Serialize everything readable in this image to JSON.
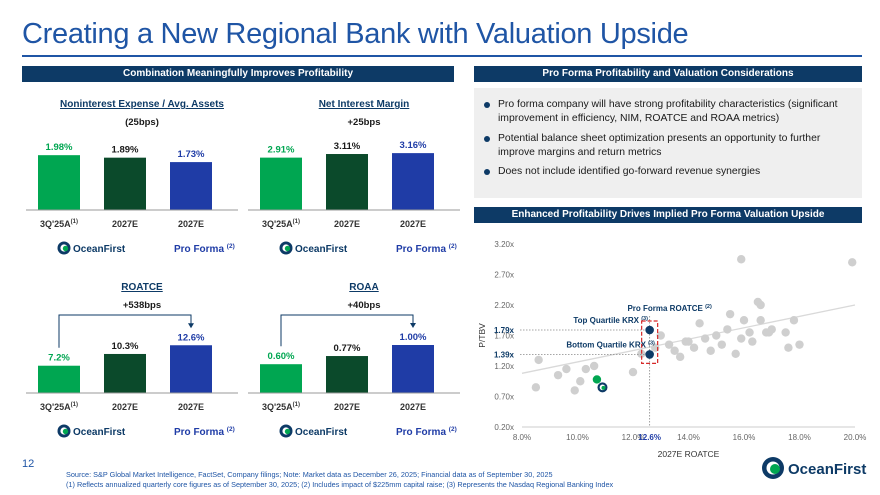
{
  "title": "Creating a New Regional Bank with Valuation Upside",
  "left_band": "Combination Meaningfully Improves Profitability",
  "right_band": "Pro Forma Profitability and Valuation Considerations",
  "scatter_band": "Enhanced Profitability Drives Implied Pro Forma Valuation Upside",
  "bullets": [
    "Pro forma company will have strong profitability characteristics (significant improvement in efficiency, NIM, ROATCE and ROAA metrics)",
    "Potential balance sheet optimization presents an opportunity to further improve margins and return metrics",
    "Does not include identified go-forward revenue synergies"
  ],
  "logo_text": "OceanFirst",
  "page_number": "12",
  "source_lines": [
    "Source: S&P Global Market Intelligence, FactSet, Company filings; Note: Market data as December 26, 2025; Financial data as of September 30, 2025",
    "(1) Reflects annualized quarterly core figures as of September 30, 2025; (2) Includes impact of $225mm capital raise; (3) Represents the Nasdaq Regional Banking Index"
  ],
  "colors": {
    "navy": "#0d3a66",
    "green": "#00a651",
    "dark_green": "#0b4a2b",
    "blue": "#1f3ca6",
    "gray_point": "#cfcfcf",
    "title_blue": "#1f55a5",
    "red_dash": "#d62828"
  },
  "chart_data": [
    {
      "type": "bar",
      "title": "Noninterest Expense / Avg. Assets",
      "subtitle": "(25bps)",
      "categories": [
        "3Q'25A",
        "2027E",
        "2027E"
      ],
      "category_superscripts": [
        "(1)",
        "",
        ""
      ],
      "values": [
        1.98,
        1.89,
        1.73
      ],
      "labels": [
        "1.98%",
        "1.89%",
        "1.73%"
      ],
      "colors": [
        "#00a651",
        "#0b4a2b",
        "#1f3ca6"
      ],
      "ylim": [
        0,
        2.6
      ],
      "pro_forma_label": "Pro Forma",
      "pro_forma_note": "(2)"
    },
    {
      "type": "bar",
      "title": "Net Interest Margin",
      "subtitle": "+25bps",
      "categories": [
        "3Q'25A",
        "2027E",
        "2027E"
      ],
      "category_superscripts": [
        "(1)",
        "",
        ""
      ],
      "values": [
        2.91,
        3.11,
        3.16
      ],
      "labels": [
        "2.91%",
        "3.11%",
        "3.16%"
      ],
      "colors": [
        "#00a651",
        "#0b4a2b",
        "#1f3ca6"
      ],
      "ylim": [
        0,
        4.0
      ],
      "pro_forma_label": "Pro Forma",
      "pro_forma_note": "(2)"
    },
    {
      "type": "bar",
      "title": "ROATCE",
      "subtitle": "+538bps",
      "categories": [
        "3Q'25A",
        "2027E",
        "2027E"
      ],
      "category_superscripts": [
        "(1)",
        "",
        ""
      ],
      "values": [
        7.2,
        10.3,
        12.6
      ],
      "labels": [
        "7.2%",
        "10.3%",
        "12.6%"
      ],
      "colors": [
        "#00a651",
        "#0b4a2b",
        "#1f3ca6"
      ],
      "ylim": [
        0,
        19
      ],
      "bracket": true,
      "pro_forma_label": "Pro Forma",
      "pro_forma_note": "(2)"
    },
    {
      "type": "bar",
      "title": "ROAA",
      "subtitle": "+40bps",
      "categories": [
        "3Q'25A",
        "2027E",
        "2027E"
      ],
      "category_superscripts": [
        "(1)",
        "",
        ""
      ],
      "values": [
        0.6,
        0.77,
        1.0
      ],
      "labels": [
        "0.60%",
        "0.77%",
        "1.00%"
      ],
      "colors": [
        "#00a651",
        "#0b4a2b",
        "#1f3ca6"
      ],
      "ylim": [
        0,
        1.5
      ],
      "bracket": true,
      "pro_forma_label": "Pro Forma",
      "pro_forma_note": "(2)"
    },
    {
      "type": "scatter",
      "xlabel": "2027E ROATCE",
      "ylabel": "P/TBV",
      "xlim": [
        8.0,
        20.0
      ],
      "ylim": [
        0.2,
        3.2
      ],
      "xticks": [
        8.0,
        10.0,
        12.0,
        14.0,
        16.0,
        18.0,
        20.0
      ],
      "xtick_labels": [
        "8.0%",
        "10.0%",
        "12.0%",
        "14.0%",
        "16.0%",
        "18.0%",
        "20.0%"
      ],
      "yticks": [
        0.2,
        0.7,
        1.2,
        1.7,
        2.2,
        2.7,
        3.2
      ],
      "ytick_labels": [
        "0.20x",
        "0.70x",
        "1.20x",
        "1.70x",
        "2.20x",
        "2.70x",
        "3.20x"
      ],
      "highlight_x": 12.6,
      "highlight_x_label": "12.6%",
      "top_quartile": {
        "label": "Top Quartile KRX",
        "note": "(3)",
        "y": 1.79,
        "y_label": "1.79x"
      },
      "bottom_quartile": {
        "label": "Bottom Quartile KRX",
        "note": "(3)",
        "y": 1.39,
        "y_label": "1.39x"
      },
      "pro_forma": {
        "label": "Pro Forma ROATCE",
        "note": "(2)"
      },
      "trendline": [
        [
          8.0,
          1.08
        ],
        [
          20.0,
          2.2
        ]
      ],
      "points": [
        [
          8.5,
          0.85
        ],
        [
          8.6,
          1.3
        ],
        [
          9.3,
          1.05
        ],
        [
          9.6,
          1.15
        ],
        [
          9.9,
          0.8
        ],
        [
          10.1,
          0.95
        ],
        [
          10.3,
          1.15
        ],
        [
          10.6,
          1.2
        ],
        [
          12.0,
          1.1
        ],
        [
          12.3,
          1.4
        ],
        [
          12.8,
          1.5
        ],
        [
          13.0,
          1.7
        ],
        [
          13.3,
          1.55
        ],
        [
          13.5,
          1.45
        ],
        [
          13.7,
          1.35
        ],
        [
          13.9,
          1.6
        ],
        [
          14.2,
          1.5
        ],
        [
          14.4,
          1.9
        ],
        [
          14.6,
          1.65
        ],
        [
          14.8,
          1.45
        ],
        [
          15.0,
          1.7
        ],
        [
          15.2,
          1.55
        ],
        [
          15.4,
          1.8
        ],
        [
          15.5,
          2.05
        ],
        [
          15.7,
          1.4
        ],
        [
          15.9,
          1.65
        ],
        [
          16.0,
          1.95
        ],
        [
          16.2,
          1.75
        ],
        [
          16.3,
          1.6
        ],
        [
          16.5,
          2.25
        ],
        [
          16.6,
          1.95
        ],
        [
          16.8,
          1.75
        ],
        [
          17.0,
          1.8
        ],
        [
          17.5,
          1.75
        ],
        [
          17.6,
          1.5
        ],
        [
          17.8,
          1.95
        ],
        [
          18.0,
          1.55
        ],
        [
          16.6,
          2.2
        ],
        [
          16.9,
          1.75
        ],
        [
          15.9,
          2.95
        ],
        [
          19.9,
          2.9
        ],
        [
          14.0,
          1.6
        ]
      ],
      "green_point": [
        10.7,
        0.98
      ],
      "ring_point": [
        10.9,
        0.85
      ]
    }
  ]
}
